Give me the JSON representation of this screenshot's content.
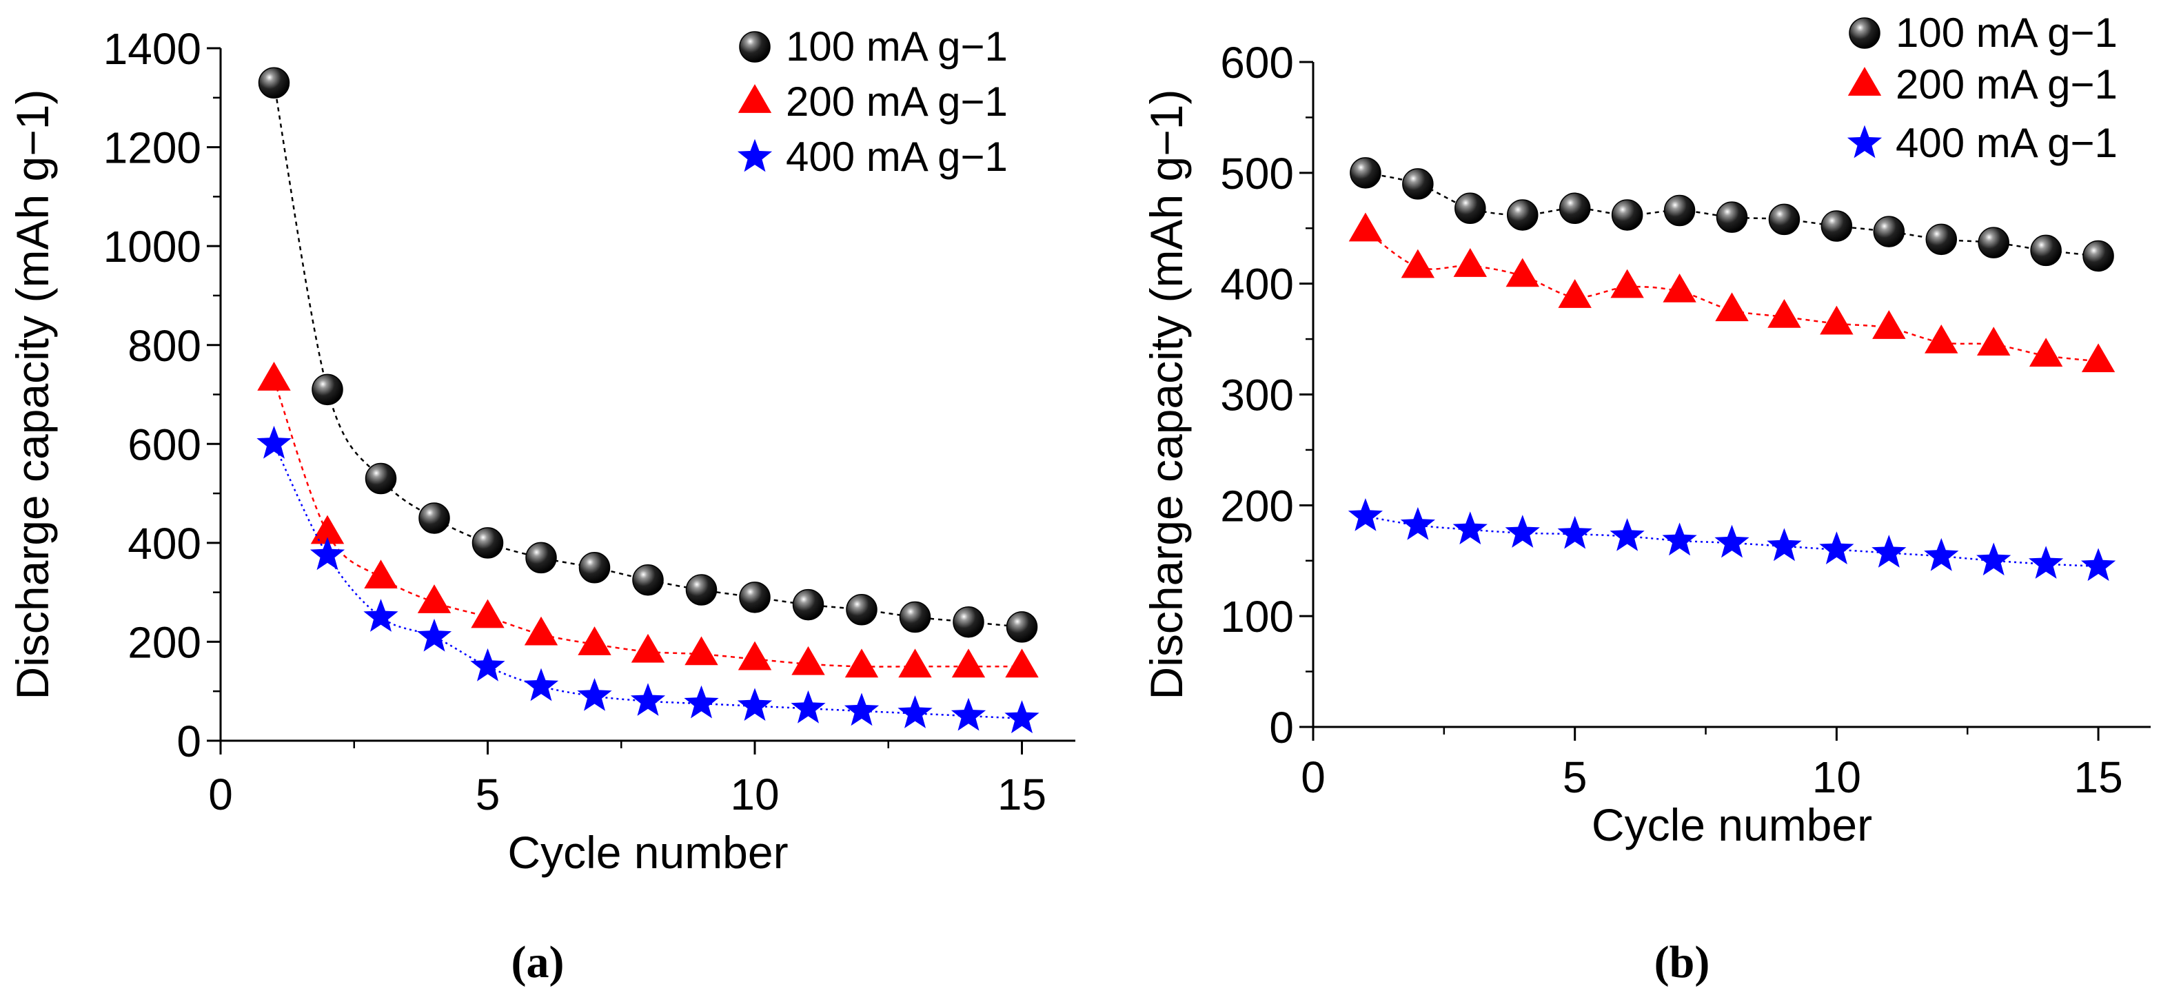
{
  "chart_data": [
    {
      "type": "scatter",
      "panel_label": "(a)",
      "xlabel": "Cycle number",
      "ylabel": "Discharge capacity (mAh g−1)",
      "xlim": [
        0,
        16
      ],
      "ylim": [
        0,
        1400
      ],
      "xticks": [
        0,
        5,
        10,
        15
      ],
      "yticks": [
        0,
        200,
        400,
        600,
        800,
        1000,
        1200,
        1400
      ],
      "grid": false,
      "legend_position": "top-right",
      "x": [
        1,
        2,
        3,
        4,
        5,
        6,
        7,
        8,
        9,
        10,
        11,
        12,
        13,
        14,
        15
      ],
      "series": [
        {
          "name": "100 mA g−1",
          "marker": "sphere",
          "color": "#000000",
          "values": [
            1330,
            710,
            530,
            450,
            400,
            370,
            350,
            325,
            305,
            290,
            275,
            265,
            250,
            240,
            230
          ]
        },
        {
          "name": "200 mA g−1",
          "marker": "triangle",
          "color": "#ff0000",
          "values": [
            730,
            420,
            330,
            280,
            250,
            215,
            195,
            180,
            175,
            165,
            155,
            150,
            150,
            150,
            150
          ]
        },
        {
          "name": "400 mA g−1",
          "marker": "star",
          "color": "#0000ff",
          "values": [
            600,
            375,
            250,
            210,
            150,
            110,
            90,
            80,
            75,
            70,
            65,
            60,
            55,
            50,
            45
          ]
        }
      ]
    },
    {
      "type": "scatter",
      "panel_label": "(b)",
      "xlabel": "Cycle number",
      "ylabel": "Discharge capacity (mAh g−1)",
      "xlim": [
        0,
        16
      ],
      "ylim": [
        0,
        600
      ],
      "xticks": [
        0,
        5,
        10,
        15
      ],
      "yticks": [
        0,
        100,
        200,
        300,
        400,
        500,
        600
      ],
      "grid": false,
      "legend_position": "top-right",
      "x": [
        1,
        2,
        3,
        4,
        5,
        6,
        7,
        8,
        9,
        10,
        11,
        12,
        13,
        14,
        15
      ],
      "series": [
        {
          "name": "100 mA g−1",
          "marker": "sphere",
          "color": "#000000",
          "values": [
            500,
            490,
            468,
            462,
            468,
            462,
            466,
            460,
            458,
            452,
            447,
            440,
            437,
            430,
            425
          ]
        },
        {
          "name": "200 mA g−1",
          "marker": "triangle",
          "color": "#ff0000",
          "values": [
            448,
            415,
            416,
            407,
            388,
            397,
            393,
            376,
            370,
            364,
            360,
            347,
            345,
            335,
            330
          ]
        },
        {
          "name": "400 mA g−1",
          "marker": "star",
          "color": "#0000ff",
          "values": [
            190,
            182,
            178,
            175,
            174,
            172,
            168,
            166,
            163,
            160,
            157,
            154,
            150,
            147,
            145
          ]
        }
      ]
    }
  ]
}
